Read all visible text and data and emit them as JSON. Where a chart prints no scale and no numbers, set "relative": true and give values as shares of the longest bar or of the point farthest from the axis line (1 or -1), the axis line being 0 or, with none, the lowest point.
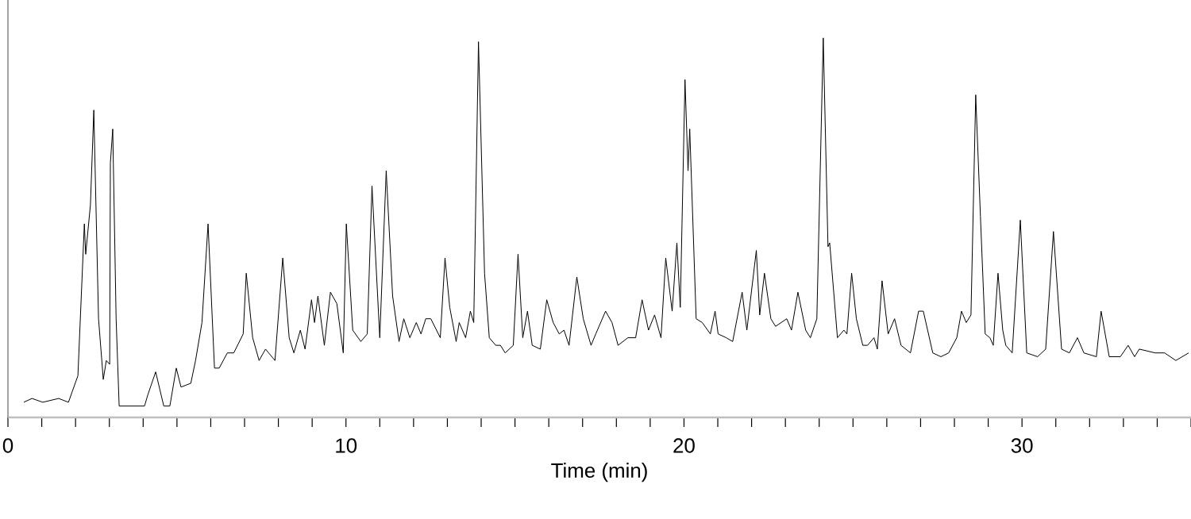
{
  "chart_data": {
    "type": "line",
    "xlabel": "Time (min)",
    "relative": true,
    "xlim": [
      0,
      35
    ],
    "xticks": [
      0,
      {
        "value": 1,
        "label": null
      },
      {
        "value": 2,
        "label": null
      },
      {
        "value": 3,
        "label": null
      },
      {
        "value": 4,
        "label": null
      },
      {
        "value": 5,
        "label": null
      },
      {
        "value": 6,
        "label": null
      },
      {
        "value": 7,
        "label": null
      },
      {
        "value": 8,
        "label": null
      },
      {
        "value": 9,
        "label": null
      },
      10,
      {
        "value": 11,
        "label": null
      },
      {
        "value": 12,
        "label": null
      },
      {
        "value": 13,
        "label": null
      },
      {
        "value": 14,
        "label": null
      },
      {
        "value": 15,
        "label": null
      },
      {
        "value": 16,
        "label": null
      },
      {
        "value": 17,
        "label": null
      },
      {
        "value": 18,
        "label": null
      },
      {
        "value": 19,
        "label": null
      },
      20,
      {
        "value": 21,
        "label": null
      },
      {
        "value": 22,
        "label": null
      },
      {
        "value": 23,
        "label": null
      },
      {
        "value": 24,
        "label": null
      },
      {
        "value": 25,
        "label": null
      },
      {
        "value": 26,
        "label": null
      },
      {
        "value": 27,
        "label": null
      },
      {
        "value": 28,
        "label": null
      },
      {
        "value": 29,
        "label": null
      },
      30,
      {
        "value": 31,
        "label": null
      },
      {
        "value": 32,
        "label": null
      },
      {
        "value": 33,
        "label": null
      },
      {
        "value": 34,
        "label": null
      },
      {
        "value": 35,
        "label": null
      }
    ],
    "marker": "none",
    "line_style": "solid",
    "series": [
      {
        "color": "#000000",
        "x": [
          0.47,
          0.71,
          1.03,
          1.5,
          1.79,
          2.07,
          2.26,
          2.3,
          2.44,
          2.54,
          2.68,
          2.82,
          2.91,
          3.01,
          3.03,
          3.1,
          3.2,
          3.29,
          3.62,
          3.76,
          4.04,
          4.14,
          4.37,
          4.61,
          4.79,
          4.98,
          5.12,
          5.41,
          5.55,
          5.74,
          5.92,
          6.11,
          6.25,
          6.49,
          6.68,
          6.96,
          7.05,
          7.24,
          7.43,
          7.62,
          7.9,
          8.13,
          8.32,
          8.46,
          8.65,
          8.79,
          8.98,
          9.07,
          9.17,
          9.36,
          9.54,
          9.73,
          9.92,
          10.01,
          10.2,
          10.44,
          10.63,
          10.77,
          11.0,
          11.19,
          11.38,
          11.57,
          11.71,
          11.89,
          12.08,
          12.22,
          12.36,
          12.51,
          12.79,
          12.93,
          13.07,
          13.26,
          13.35,
          13.54,
          13.68,
          13.78,
          13.92,
          14.1,
          14.24,
          14.43,
          14.57,
          14.71,
          14.95,
          15.09,
          15.23,
          15.37,
          15.51,
          15.75,
          15.94,
          16.13,
          16.31,
          16.45,
          16.6,
          16.83,
          17.02,
          17.25,
          17.39,
          17.68,
          17.87,
          18.05,
          18.34,
          18.57,
          18.76,
          18.95,
          19.13,
          19.32,
          19.46,
          19.65,
          19.79,
          19.89,
          20.03,
          20.12,
          20.17,
          20.36,
          20.54,
          20.78,
          20.92,
          21.01,
          21.25,
          21.44,
          21.72,
          21.86,
          22.14,
          22.24,
          22.38,
          22.57,
          22.71,
          23.04,
          23.18,
          23.37,
          23.6,
          23.74,
          23.93,
          24.12,
          24.26,
          24.31,
          24.54,
          24.73,
          24.82,
          24.96,
          25.1,
          25.29,
          25.43,
          25.62,
          25.72,
          25.86,
          26.04,
          26.23,
          26.42,
          26.7,
          26.94,
          27.08,
          27.36,
          27.6,
          27.83,
          28.07,
          28.21,
          28.35,
          28.49,
          28.63,
          28.77,
          28.91,
          29.05,
          29.15,
          29.29,
          29.43,
          29.52,
          29.71,
          29.95,
          30.14,
          30.46,
          30.7,
          30.93,
          31.17,
          31.4,
          31.64,
          31.83,
          32.2,
          32.34,
          32.58,
          32.91,
          33.14,
          33.33,
          33.47,
          33.94,
          34.22,
          34.55,
          34.93
        ],
        "values": [
          0.04,
          0.05,
          0.04,
          0.05,
          0.04,
          0.11,
          0.51,
          0.43,
          0.56,
          0.81,
          0.26,
          0.1,
          0.15,
          0.14,
          0.67,
          0.76,
          0.26,
          0.03,
          0.03,
          0.03,
          0.03,
          0.06,
          0.12,
          0.03,
          0.03,
          0.13,
          0.08,
          0.09,
          0.15,
          0.25,
          0.51,
          0.13,
          0.13,
          0.17,
          0.17,
          0.22,
          0.38,
          0.21,
          0.15,
          0.18,
          0.15,
          0.42,
          0.21,
          0.17,
          0.23,
          0.18,
          0.31,
          0.25,
          0.32,
          0.19,
          0.33,
          0.3,
          0.17,
          0.51,
          0.23,
          0.2,
          0.22,
          0.61,
          0.21,
          0.65,
          0.32,
          0.2,
          0.26,
          0.21,
          0.25,
          0.22,
          0.26,
          0.26,
          0.21,
          0.42,
          0.29,
          0.2,
          0.25,
          0.21,
          0.28,
          0.25,
          0.99,
          0.38,
          0.21,
          0.19,
          0.19,
          0.17,
          0.19,
          0.43,
          0.21,
          0.28,
          0.19,
          0.18,
          0.31,
          0.25,
          0.22,
          0.23,
          0.19,
          0.37,
          0.26,
          0.19,
          0.22,
          0.28,
          0.25,
          0.19,
          0.21,
          0.21,
          0.31,
          0.23,
          0.27,
          0.21,
          0.42,
          0.28,
          0.46,
          0.29,
          0.89,
          0.65,
          0.76,
          0.26,
          0.25,
          0.22,
          0.28,
          0.22,
          0.21,
          0.2,
          0.33,
          0.23,
          0.44,
          0.27,
          0.38,
          0.26,
          0.24,
          0.26,
          0.23,
          0.33,
          0.23,
          0.21,
          0.26,
          1.0,
          0.45,
          0.46,
          0.21,
          0.23,
          0.22,
          0.38,
          0.26,
          0.19,
          0.19,
          0.21,
          0.18,
          0.36,
          0.22,
          0.26,
          0.19,
          0.17,
          0.28,
          0.28,
          0.17,
          0.16,
          0.17,
          0.21,
          0.28,
          0.25,
          0.27,
          0.85,
          0.53,
          0.22,
          0.21,
          0.19,
          0.38,
          0.23,
          0.19,
          0.17,
          0.52,
          0.17,
          0.16,
          0.18,
          0.49,
          0.18,
          0.17,
          0.21,
          0.17,
          0.16,
          0.28,
          0.16,
          0.16,
          0.19,
          0.16,
          0.18,
          0.17,
          0.17,
          0.15,
          0.17
        ]
      }
    ]
  }
}
